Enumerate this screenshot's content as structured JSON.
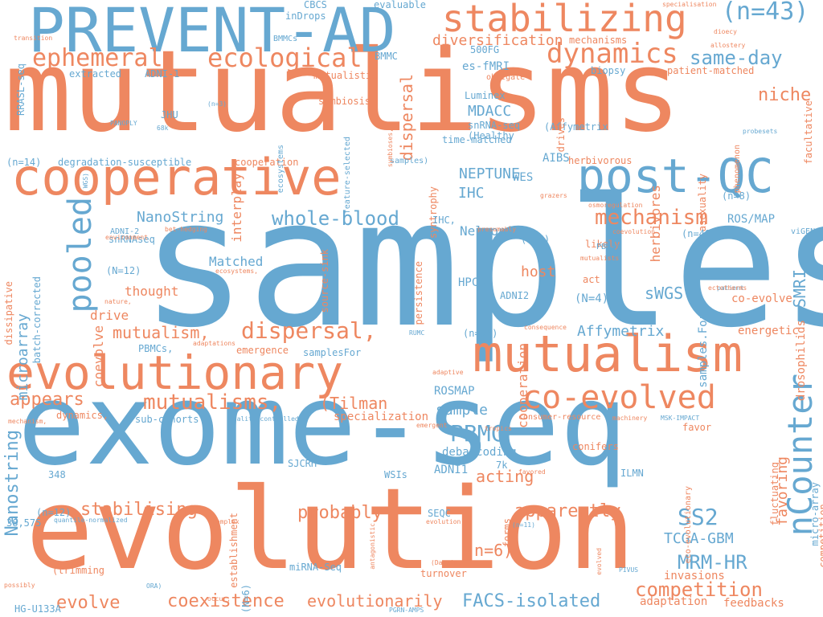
{
  "palette": {
    "blue": "#66a8d1",
    "orange": "#ee8760"
  },
  "words": [
    {
      "text": "samples",
      "color": "blue"
    },
    {
      "text": "mutualisms",
      "color": "orange"
    },
    {
      "text": "exome-seq",
      "color": "blue"
    },
    {
      "text": "evolution",
      "color": "orange"
    },
    {
      "text": "PREVENT-AD",
      "color": "blue"
    },
    {
      "text": "cooperative",
      "color": "orange"
    },
    {
      "text": "mutualism",
      "color": "orange"
    },
    {
      "text": "evolutionary",
      "color": "orange"
    },
    {
      "text": "post-QC",
      "color": "blue"
    },
    {
      "text": "nCounter",
      "color": "blue"
    },
    {
      "text": "stabilizing",
      "color": "orange"
    },
    {
      "text": "co-evolved",
      "color": "orange"
    },
    {
      "text": "pooled",
      "color": "blue"
    },
    {
      "text": "dynamics",
      "color": "orange"
    },
    {
      "text": "ecological",
      "color": "orange"
    },
    {
      "text": "ephemeral",
      "color": "orange"
    },
    {
      "text": "(n=43)",
      "color": "blue"
    },
    {
      "text": "mechanism",
      "color": "orange"
    },
    {
      "text": "dispersal,",
      "color": "orange"
    },
    {
      "text": "mutualisms,",
      "color": "orange"
    },
    {
      "text": "Nanostring",
      "color": "blue"
    },
    {
      "text": "whole-blood",
      "color": "blue"
    },
    {
      "text": "competition",
      "color": "orange"
    },
    {
      "text": "same-day",
      "color": "blue"
    },
    {
      "text": "niche",
      "color": "orange"
    },
    {
      "text": "PBMC",
      "color": "blue"
    },
    {
      "text": "SS2",
      "color": "blue"
    },
    {
      "text": "MRM-HR",
      "color": "blue"
    },
    {
      "text": "(Tilman",
      "color": "orange"
    },
    {
      "text": "probably",
      "color": "orange"
    },
    {
      "text": "apparently",
      "color": "orange"
    },
    {
      "text": "stabilising",
      "color": "orange"
    },
    {
      "text": "coexistence",
      "color": "orange"
    },
    {
      "text": "evolutionarily",
      "color": "orange"
    },
    {
      "text": "FACS-isolated",
      "color": "blue"
    },
    {
      "text": "evolve",
      "color": "orange"
    },
    {
      "text": "appears",
      "color": "orange"
    },
    {
      "text": "mutualism,",
      "color": "orange"
    },
    {
      "text": "NEPTUNE",
      "color": "blue"
    },
    {
      "text": "NanoString",
      "color": "blue"
    },
    {
      "text": "diversification",
      "color": "orange"
    },
    {
      "text": "dispersal",
      "color": "orange"
    },
    {
      "text": "TCGA-GBM",
      "color": "blue"
    },
    {
      "text": "(n=6)",
      "color": "orange"
    },
    {
      "text": "acting",
      "color": "orange"
    },
    {
      "text": "Affymetrix",
      "color": "blue"
    },
    {
      "text": "SMRI",
      "color": "blue"
    },
    {
      "text": "sWGS",
      "color": "blue"
    },
    {
      "text": "host",
      "color": "orange"
    },
    {
      "text": "favoring",
      "color": "orange"
    },
    {
      "text": "sample",
      "color": "blue"
    },
    {
      "text": "microarray",
      "color": "blue"
    },
    {
      "text": "MDACC",
      "color": "blue"
    },
    {
      "text": "IHC",
      "color": "blue"
    },
    {
      "text": "Matched",
      "color": "blue"
    },
    {
      "text": "thought",
      "color": "orange"
    },
    {
      "text": "drive",
      "color": "orange"
    },
    {
      "text": "coevolve",
      "color": "orange"
    },
    {
      "text": "cooperation",
      "color": "orange"
    },
    {
      "text": "herbivores",
      "color": "orange"
    },
    {
      "text": "interplay",
      "color": "orange"
    },
    {
      "text": "NelsonA",
      "color": "blue"
    },
    {
      "text": "ROSMAP",
      "color": "blue"
    },
    {
      "text": "specialization",
      "color": "orange"
    },
    {
      "text": "sub-cohorts",
      "color": "blue"
    },
    {
      "text": "ADNI1",
      "color": "blue"
    },
    {
      "text": "ROS/MAP",
      "color": "blue"
    },
    {
      "text": "(N=4)",
      "color": "blue"
    },
    {
      "text": "energetic",
      "color": "orange"
    },
    {
      "text": "invasions",
      "color": "orange"
    },
    {
      "text": "feedbacks",
      "color": "orange"
    },
    {
      "text": "adaptation",
      "color": "orange"
    },
    {
      "text": "samples.For",
      "color": "blue"
    },
    {
      "text": "drosophilids",
      "color": "orange"
    },
    {
      "text": "co-evolve",
      "color": "orange"
    },
    {
      "text": "act",
      "color": "orange"
    },
    {
      "text": "likely",
      "color": "orange"
    },
    {
      "text": "JHU",
      "color": "blue"
    },
    {
      "text": "symbiosis",
      "color": "orange"
    },
    {
      "text": "syntrophy",
      "color": "orange"
    },
    {
      "text": "Luminex",
      "color": "blue"
    },
    {
      "text": "snRNA-seq",
      "color": "blue"
    },
    {
      "text": "(Healthy",
      "color": "blue"
    },
    {
      "text": "(Affymetrix",
      "color": "blue"
    },
    {
      "text": "biopsy",
      "color": "blue"
    },
    {
      "text": "patient-matched",
      "color": "orange"
    },
    {
      "text": "drives",
      "color": "orange"
    },
    {
      "text": "mechanisms",
      "color": "orange"
    },
    {
      "text": "500FG",
      "color": "blue"
    },
    {
      "text": "es-fMRI",
      "color": "blue"
    },
    {
      "text": "BMMC",
      "color": "blue"
    },
    {
      "text": "ADNI-1",
      "color": "blue"
    },
    {
      "text": "extracted",
      "color": "blue"
    },
    {
      "text": "mutualistic",
      "color": "orange"
    },
    {
      "text": "obligate",
      "color": "orange"
    },
    {
      "text": "CBCS",
      "color": "blue"
    },
    {
      "text": "inDrops",
      "color": "blue"
    },
    {
      "text": "evaluable",
      "color": "blue"
    },
    {
      "text": "BMMCs",
      "color": "blue"
    },
    {
      "text": "RRASL-seq",
      "color": "blue"
    },
    {
      "text": "facultative",
      "color": "orange"
    },
    {
      "text": "asexuality",
      "color": "orange"
    },
    {
      "text": "phenomenon",
      "color": "orange"
    },
    {
      "text": "WES",
      "color": "blue"
    },
    {
      "text": "AIBS",
      "color": "blue"
    },
    {
      "text": "herbivorous",
      "color": "orange"
    },
    {
      "text": "time-matched",
      "color": "blue"
    },
    {
      "text": "samples)",
      "color": "blue"
    },
    {
      "text": "cooperation",
      "color": "orange"
    },
    {
      "text": "degradation-susceptible",
      "color": "blue"
    },
    {
      "text": "(n=14)",
      "color": "blue"
    },
    {
      "text": "ecosystems",
      "color": "blue"
    },
    {
      "text": "feature-selected",
      "color": "blue"
    },
    {
      "text": "(n=8)",
      "color": "blue"
    },
    {
      "text": "(n=40)",
      "color": "blue"
    },
    {
      "text": "viGEN",
      "color": "blue"
    },
    {
      "text": "osmoregulation",
      "color": "orange"
    },
    {
      "text": "coevolution",
      "color": "orange"
    },
    {
      "text": "mutualists",
      "color": "orange"
    },
    {
      "text": "PBMCs",
      "color": "blue"
    },
    {
      "text": "patient",
      "color": "blue"
    },
    {
      "text": "ADNI-2",
      "color": "blue"
    },
    {
      "text": "(N=12)",
      "color": "blue"
    },
    {
      "text": "snRNAseq",
      "color": "blue"
    },
    {
      "text": "IHC,",
      "color": "blue"
    },
    {
      "text": "HPCA",
      "color": "blue"
    },
    {
      "text": "ADNI2",
      "color": "blue"
    },
    {
      "text": "(n=4)",
      "color": "blue"
    },
    {
      "text": "batch-corrected",
      "color": "blue"
    },
    {
      "text": "dissipative",
      "color": "orange"
    },
    {
      "text": "source-sink",
      "color": "orange"
    },
    {
      "text": "persistence",
      "color": "orange"
    },
    {
      "text": "(n=95)",
      "color": "blue"
    },
    {
      "text": "PBMCs,",
      "color": "blue"
    },
    {
      "text": "emergence",
      "color": "orange"
    },
    {
      "text": "samplesFor",
      "color": "blue"
    },
    {
      "text": "dynamics,",
      "color": "orange"
    },
    {
      "text": "quality-controlled",
      "color": "blue"
    },
    {
      "text": "consumer-resource",
      "color": "orange"
    },
    {
      "text": "MSK-IMPACT",
      "color": "blue"
    },
    {
      "text": "favor",
      "color": "orange"
    },
    {
      "text": "348",
      "color": "blue"
    },
    {
      "text": "debarcoding",
      "color": "blue"
    },
    {
      "text": "conifers",
      "color": "orange"
    },
    {
      "text": "ILMN",
      "color": "blue"
    },
    {
      "text": "SJCRH",
      "color": "blue"
    },
    {
      "text": "7k",
      "color": "blue"
    },
    {
      "text": "WSIs",
      "color": "blue"
    },
    {
      "text": "(n=12)",
      "color": "blue"
    },
    {
      "text": "38,575",
      "color": "blue"
    },
    {
      "text": "SEQC",
      "color": "blue"
    },
    {
      "text": "miRNA-Seq",
      "color": "blue"
    },
    {
      "text": "(N=6)",
      "color": "blue"
    },
    {
      "text": "(trimming",
      "color": "orange"
    },
    {
      "text": "turnover",
      "color": "orange"
    },
    {
      "text": "HG-U133A",
      "color": "blue"
    },
    {
      "text": "forms",
      "color": "orange"
    },
    {
      "text": "fluctuating",
      "color": "orange"
    },
    {
      "text": "micro-array",
      "color": "blue"
    },
    {
      "text": "competition,",
      "color": "orange"
    },
    {
      "text": "eco-evolutionary",
      "color": "orange"
    },
    {
      "text": "evolution,",
      "color": "orange"
    },
    {
      "text": "quantile-normalized",
      "color": "blue"
    },
    {
      "text": "establishment",
      "color": "orange"
    },
    {
      "text": "adaptations",
      "color": "orange"
    },
    {
      "text": "PANOPLY",
      "color": "blue"
    },
    {
      "text": "68k",
      "color": "blue"
    },
    {
      "text": "(n=3)",
      "color": "blue"
    },
    {
      "text": "WGS)",
      "color": "blue"
    },
    {
      "text": "specialisation",
      "color": "orange"
    },
    {
      "text": "transition",
      "color": "orange"
    },
    {
      "text": "dioecy",
      "color": "orange"
    },
    {
      "text": "allostery",
      "color": "orange"
    },
    {
      "text": "probesets",
      "color": "blue"
    },
    {
      "text": "symbioses,",
      "color": "orange"
    },
    {
      "text": "grazers",
      "color": "orange"
    },
    {
      "text": "environment",
      "color": "orange"
    },
    {
      "text": "bet-hedging",
      "color": "orange"
    },
    {
      "text": "presumably",
      "color": "orange"
    },
    {
      "text": "ecosystems,",
      "color": "orange"
    },
    {
      "text": "nature,",
      "color": "orange"
    },
    {
      "text": "ectotherms",
      "color": "orange"
    },
    {
      "text": "consequence",
      "color": "orange"
    },
    {
      "text": "RUMC",
      "color": "blue"
    },
    {
      "text": "adaptive",
      "color": "orange"
    },
    {
      "text": "machinery",
      "color": "orange"
    },
    {
      "text": "emergent",
      "color": "orange"
    },
    {
      "text": "tropics",
      "color": "orange"
    },
    {
      "text": "favored",
      "color": "orange"
    },
    {
      "text": "mechanism,",
      "color": "orange"
    },
    {
      "text": "complex",
      "color": "orange"
    },
    {
      "text": "antagonistic",
      "color": "orange"
    },
    {
      "text": "(Darwin,",
      "color": "orange"
    },
    {
      "text": "(n=11)",
      "color": "blue"
    },
    {
      "text": "evolved",
      "color": "orange"
    },
    {
      "text": "PIVUS",
      "color": "blue"
    },
    {
      "text": "possibly",
      "color": "orange"
    },
    {
      "text": "ORA)",
      "color": "blue"
    },
    {
      "text": "occur,",
      "color": "orange"
    },
    {
      "text": "PGRN-AMPS",
      "color": "blue"
    }
  ]
}
